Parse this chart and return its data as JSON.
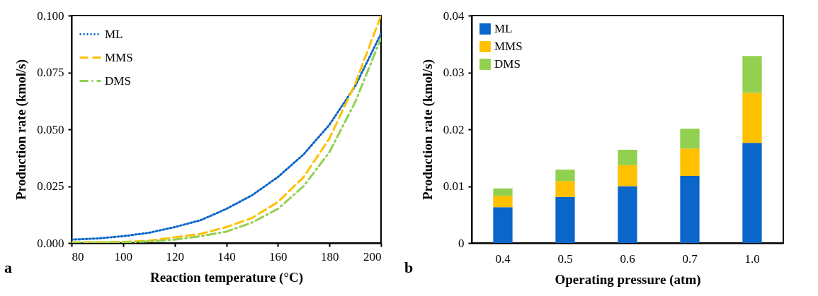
{
  "chart_data": [
    {
      "type": "line",
      "xlabel": "Reaction temperature (°C)",
      "ylabel": "Production rate (kmol/s)",
      "annotations": [
        "a"
      ],
      "x": [
        80,
        90,
        100,
        110,
        120,
        130,
        140,
        150,
        160,
        170,
        180,
        190,
        200
      ],
      "series": [
        {
          "name": "ML",
          "color": "#0a66c8",
          "line_style": "dotted",
          "values": [
            0.0015,
            0.002,
            0.003,
            0.0045,
            0.007,
            0.01,
            0.015,
            0.021,
            0.029,
            0.039,
            0.052,
            0.069,
            0.092
          ]
        },
        {
          "name": "MMS",
          "color": "#ffc000",
          "line_style": "dashed",
          "values": [
            0.0003,
            0.0003,
            0.0005,
            0.001,
            0.0025,
            0.004,
            0.007,
            0.011,
            0.018,
            0.029,
            0.046,
            0.07,
            0.1
          ]
        },
        {
          "name": "DMS",
          "color": "#92d050",
          "line_style": "dashdot",
          "values": [
            0.0001,
            0.0002,
            0.0003,
            0.0007,
            0.0015,
            0.003,
            0.005,
            0.009,
            0.015,
            0.025,
            0.04,
            0.062,
            0.09
          ]
        }
      ],
      "xlim": [
        80,
        200
      ],
      "xticks": [
        80,
        100,
        120,
        140,
        160,
        180,
        200
      ],
      "ylim": [
        0,
        0.1
      ],
      "yticks": [
        {
          "value": 0,
          "label": "0.000"
        },
        {
          "value": 0.025,
          "label": "0.025"
        },
        {
          "value": 0.05,
          "label": "0.050"
        },
        {
          "value": 0.075,
          "label": "0.075"
        },
        {
          "value": 0.1,
          "label": "0.100"
        }
      ],
      "grid": false,
      "legend": "top left"
    },
    {
      "type": "bar",
      "stacked": true,
      "xlabel": "Operating pressure (atm)",
      "ylabel": "Production rate (kmol/s)",
      "annotations": [
        "b"
      ],
      "categories": [
        "0.4",
        "0.5",
        "0.6",
        "0.7",
        "1.0"
      ],
      "series": [
        {
          "name": "ML",
          "color": "#0a66c8",
          "values": [
            0.0063,
            0.0081,
            0.01,
            0.0118,
            0.0176
          ]
        },
        {
          "name": "MMS",
          "color": "#ffc000",
          "values": [
            0.002,
            0.0028,
            0.0037,
            0.0048,
            0.0088
          ]
        },
        {
          "name": "DMS",
          "color": "#92d050",
          "values": [
            0.0013,
            0.002,
            0.0027,
            0.0035,
            0.0065
          ]
        }
      ],
      "ylim": [
        0,
        0.04
      ],
      "yticks": [
        0,
        0.01,
        0.02,
        0.03,
        0.04
      ],
      "grid": false,
      "legend": "top left"
    }
  ]
}
